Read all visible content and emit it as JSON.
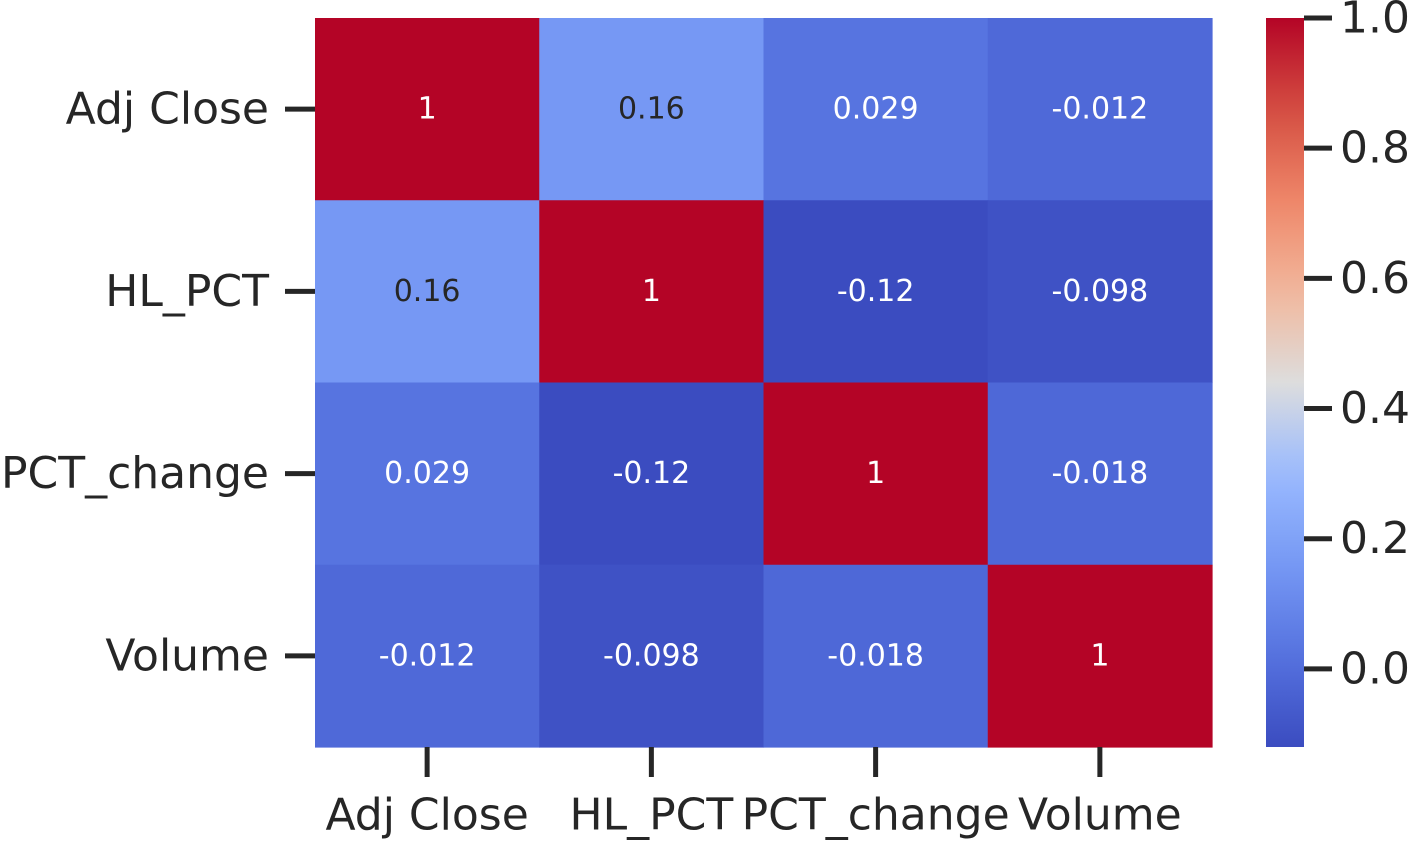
{
  "chart_data": {
    "type": "heatmap",
    "title": "",
    "xlabel": "",
    "ylabel": "",
    "rows": [
      "Adj Close",
      "HL_PCT",
      "PCT_change",
      "Volume"
    ],
    "columns": [
      "Adj Close",
      "HL_PCT",
      "PCT_change",
      "Volume"
    ],
    "values": [
      [
        1,
        0.16,
        0.029,
        -0.012
      ],
      [
        0.16,
        1,
        -0.12,
        -0.098
      ],
      [
        0.029,
        -0.12,
        1,
        -0.018
      ],
      [
        -0.012,
        -0.098,
        -0.018,
        1
      ]
    ],
    "annotations": [
      [
        "1",
        "0.16",
        "0.029",
        "-0.012"
      ],
      [
        "0.16",
        "1",
        "-0.12",
        "-0.098"
      ],
      [
        "0.029",
        "-0.12",
        "1",
        "-0.018"
      ],
      [
        "-0.012",
        "-0.098",
        "-0.018",
        "1"
      ]
    ],
    "colorbar": {
      "colormap": "coolwarm",
      "vmin": -0.12,
      "vmax": 1.0,
      "ticks": [
        0.0,
        0.2,
        0.4,
        0.6,
        0.8,
        1.0
      ],
      "tick_labels": [
        "0.0",
        "0.2",
        "0.4",
        "0.6",
        "0.8",
        "1.0"
      ]
    },
    "grid": false,
    "legend_position": "right"
  }
}
